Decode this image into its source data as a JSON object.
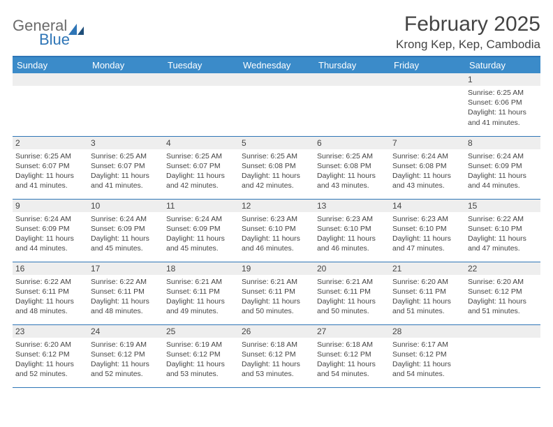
{
  "logo": {
    "word1": "General",
    "word2": "Blue",
    "color1": "#6b6b6b",
    "color2": "#2e75b6"
  },
  "header": {
    "month_title": "February 2025",
    "location": "Krong Kep, Kep, Cambodia"
  },
  "colors": {
    "header_bg": "#3b8bc9",
    "header_text": "#ffffff",
    "rule": "#2e75b6",
    "daynum_bg": "#eeeeee",
    "text": "#444444",
    "background": "#ffffff"
  },
  "typography": {
    "month_title_fontsize": 30,
    "location_fontsize": 17,
    "weekday_fontsize": 13,
    "daynum_fontsize": 12,
    "body_fontsize": 10.5,
    "font_family": "Arial"
  },
  "calendar": {
    "type": "table",
    "columns": [
      "Sunday",
      "Monday",
      "Tuesday",
      "Wednesday",
      "Thursday",
      "Friday",
      "Saturday"
    ],
    "weeks": [
      [
        null,
        null,
        null,
        null,
        null,
        null,
        {
          "n": "1",
          "sunrise": "6:25 AM",
          "sunset": "6:06 PM",
          "daylight": "11 hours and 41 minutes."
        }
      ],
      [
        {
          "n": "2",
          "sunrise": "6:25 AM",
          "sunset": "6:07 PM",
          "daylight": "11 hours and 41 minutes."
        },
        {
          "n": "3",
          "sunrise": "6:25 AM",
          "sunset": "6:07 PM",
          "daylight": "11 hours and 41 minutes."
        },
        {
          "n": "4",
          "sunrise": "6:25 AM",
          "sunset": "6:07 PM",
          "daylight": "11 hours and 42 minutes."
        },
        {
          "n": "5",
          "sunrise": "6:25 AM",
          "sunset": "6:08 PM",
          "daylight": "11 hours and 42 minutes."
        },
        {
          "n": "6",
          "sunrise": "6:25 AM",
          "sunset": "6:08 PM",
          "daylight": "11 hours and 43 minutes."
        },
        {
          "n": "7",
          "sunrise": "6:24 AM",
          "sunset": "6:08 PM",
          "daylight": "11 hours and 43 minutes."
        },
        {
          "n": "8",
          "sunrise": "6:24 AM",
          "sunset": "6:09 PM",
          "daylight": "11 hours and 44 minutes."
        }
      ],
      [
        {
          "n": "9",
          "sunrise": "6:24 AM",
          "sunset": "6:09 PM",
          "daylight": "11 hours and 44 minutes."
        },
        {
          "n": "10",
          "sunrise": "6:24 AM",
          "sunset": "6:09 PM",
          "daylight": "11 hours and 45 minutes."
        },
        {
          "n": "11",
          "sunrise": "6:24 AM",
          "sunset": "6:09 PM",
          "daylight": "11 hours and 45 minutes."
        },
        {
          "n": "12",
          "sunrise": "6:23 AM",
          "sunset": "6:10 PM",
          "daylight": "11 hours and 46 minutes."
        },
        {
          "n": "13",
          "sunrise": "6:23 AM",
          "sunset": "6:10 PM",
          "daylight": "11 hours and 46 minutes."
        },
        {
          "n": "14",
          "sunrise": "6:23 AM",
          "sunset": "6:10 PM",
          "daylight": "11 hours and 47 minutes."
        },
        {
          "n": "15",
          "sunrise": "6:22 AM",
          "sunset": "6:10 PM",
          "daylight": "11 hours and 47 minutes."
        }
      ],
      [
        {
          "n": "16",
          "sunrise": "6:22 AM",
          "sunset": "6:11 PM",
          "daylight": "11 hours and 48 minutes."
        },
        {
          "n": "17",
          "sunrise": "6:22 AM",
          "sunset": "6:11 PM",
          "daylight": "11 hours and 48 minutes."
        },
        {
          "n": "18",
          "sunrise": "6:21 AM",
          "sunset": "6:11 PM",
          "daylight": "11 hours and 49 minutes."
        },
        {
          "n": "19",
          "sunrise": "6:21 AM",
          "sunset": "6:11 PM",
          "daylight": "11 hours and 50 minutes."
        },
        {
          "n": "20",
          "sunrise": "6:21 AM",
          "sunset": "6:11 PM",
          "daylight": "11 hours and 50 minutes."
        },
        {
          "n": "21",
          "sunrise": "6:20 AM",
          "sunset": "6:11 PM",
          "daylight": "11 hours and 51 minutes."
        },
        {
          "n": "22",
          "sunrise": "6:20 AM",
          "sunset": "6:12 PM",
          "daylight": "11 hours and 51 minutes."
        }
      ],
      [
        {
          "n": "23",
          "sunrise": "6:20 AM",
          "sunset": "6:12 PM",
          "daylight": "11 hours and 52 minutes."
        },
        {
          "n": "24",
          "sunrise": "6:19 AM",
          "sunset": "6:12 PM",
          "daylight": "11 hours and 52 minutes."
        },
        {
          "n": "25",
          "sunrise": "6:19 AM",
          "sunset": "6:12 PM",
          "daylight": "11 hours and 53 minutes."
        },
        {
          "n": "26",
          "sunrise": "6:18 AM",
          "sunset": "6:12 PM",
          "daylight": "11 hours and 53 minutes."
        },
        {
          "n": "27",
          "sunrise": "6:18 AM",
          "sunset": "6:12 PM",
          "daylight": "11 hours and 54 minutes."
        },
        {
          "n": "28",
          "sunrise": "6:17 AM",
          "sunset": "6:12 PM",
          "daylight": "11 hours and 54 minutes."
        },
        null
      ]
    ],
    "labels": {
      "sunrise": "Sunrise:",
      "sunset": "Sunset:",
      "daylight": "Daylight:"
    }
  }
}
